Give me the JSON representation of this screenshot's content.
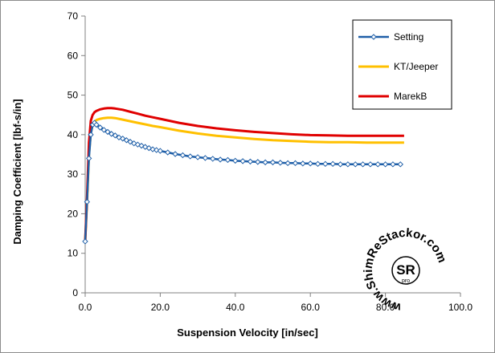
{
  "chart_data": {
    "type": "line",
    "xlabel": "Suspension Velocity [in/sec]",
    "ylabel": "Damping Coefficient  [lbf-s/in]",
    "xlim": [
      0,
      100
    ],
    "ylim": [
      0,
      70
    ],
    "x_ticks": [
      "0.0",
      "20.0",
      "40.0",
      "60.0",
      "80.0",
      "100.0"
    ],
    "y_ticks": [
      "0",
      "10",
      "20",
      "30",
      "40",
      "50",
      "60",
      "70"
    ],
    "grid": false,
    "legend_position": "top-right",
    "series": [
      {
        "name": "Setting",
        "color": "#1f5fa8",
        "marker": "diamond",
        "x": [
          0,
          0.5,
          1,
          1.5,
          2,
          2.5,
          3,
          4,
          5,
          6,
          7,
          8,
          9,
          10,
          11,
          12,
          13,
          14,
          15,
          16,
          17,
          18,
          19,
          20,
          22,
          24,
          26,
          28,
          30,
          32,
          34,
          36,
          38,
          40,
          42,
          44,
          46,
          48,
          50,
          52,
          54,
          56,
          58,
          60,
          62,
          64,
          66,
          68,
          70,
          72,
          74,
          76,
          78,
          80,
          82,
          84
        ],
        "y": [
          13.0,
          23.0,
          34.0,
          40.0,
          42.5,
          43.0,
          42.5,
          41.8,
          41.2,
          40.7,
          40.2,
          39.8,
          39.3,
          39.0,
          38.6,
          38.2,
          37.8,
          37.5,
          37.2,
          36.9,
          36.6,
          36.3,
          36.1,
          35.9,
          35.5,
          35.1,
          34.8,
          34.5,
          34.3,
          34.1,
          33.9,
          33.7,
          33.6,
          33.4,
          33.3,
          33.2,
          33.1,
          33.0,
          33.0,
          32.9,
          32.8,
          32.8,
          32.7,
          32.7,
          32.6,
          32.6,
          32.6,
          32.5,
          32.5,
          32.5,
          32.5,
          32.5,
          32.5,
          32.5,
          32.5,
          32.5
        ]
      },
      {
        "name": "KT/Jeeper",
        "color": "#ffc000",
        "marker": "none",
        "x": [
          0,
          0.5,
          1,
          1.5,
          2,
          2.5,
          3,
          4,
          5,
          6,
          7,
          8,
          10,
          12,
          14,
          16,
          18,
          20,
          25,
          30,
          35,
          40,
          45,
          50,
          55,
          60,
          65,
          70,
          75,
          80,
          85
        ],
        "y": [
          13.0,
          23.0,
          35.0,
          40.5,
          42.5,
          43.3,
          43.7,
          44.0,
          44.2,
          44.3,
          44.3,
          44.2,
          43.8,
          43.4,
          43.0,
          42.6,
          42.2,
          41.9,
          41.0,
          40.3,
          39.7,
          39.3,
          38.9,
          38.6,
          38.4,
          38.2,
          38.1,
          38.1,
          38.0,
          38.0,
          38.0
        ]
      },
      {
        "name": "MarekB",
        "color": "#e00000",
        "marker": "none",
        "x": [
          0,
          0.5,
          1,
          1.5,
          2,
          2.5,
          3,
          4,
          5,
          6,
          7,
          8,
          10,
          12,
          14,
          16,
          18,
          20,
          25,
          30,
          35,
          40,
          45,
          50,
          55,
          60,
          65,
          70,
          75,
          80,
          85
        ],
        "y": [
          13.0,
          24.0,
          38.0,
          43.5,
          45.0,
          45.7,
          46.0,
          46.4,
          46.6,
          46.7,
          46.7,
          46.6,
          46.3,
          45.8,
          45.3,
          44.8,
          44.4,
          44.0,
          43.0,
          42.2,
          41.6,
          41.1,
          40.7,
          40.4,
          40.1,
          39.9,
          39.8,
          39.7,
          39.7,
          39.7,
          39.7
        ]
      }
    ]
  },
  "logo": {
    "text": "www.ShimReStackor.com",
    "monogram": "SR",
    "sub": "pro"
  }
}
